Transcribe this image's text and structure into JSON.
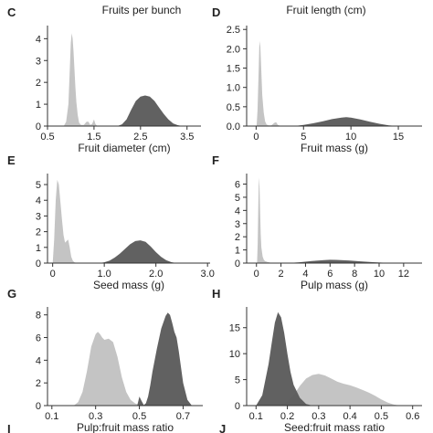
{
  "header": {
    "left_title": "Fruits per bunch",
    "right_title": "Fruit length (cm)"
  },
  "colors": {
    "light": "#c4c4c4",
    "dark": "#5b5b5b",
    "axis": "#333333"
  },
  "footer": {
    "left_letter": "I",
    "right_letter": "J"
  },
  "chart_data": [
    {
      "panel": "C",
      "type": "area",
      "xlabel": "Fruit diameter (cm)",
      "xlim": [
        0.5,
        3.8
      ],
      "ylim": [
        0,
        4.6
      ],
      "xticks": [
        0.5,
        1.5,
        2.5,
        3.5
      ],
      "xtick_labels": [
        "0.5",
        "1.5",
        "2.5",
        "3.5"
      ],
      "yticks": [
        0,
        1,
        2,
        3,
        4
      ],
      "series": [
        {
          "shade": "light",
          "x": [
            0.85,
            0.9,
            0.95,
            0.98,
            1.0,
            1.02,
            1.04,
            1.06,
            1.08,
            1.1,
            1.12,
            1.15,
            1.18,
            1.22,
            1.28,
            1.34,
            1.38,
            1.42,
            1.46,
            1.5,
            1.53,
            1.56,
            1.6
          ],
          "y": [
            0,
            0.2,
            1.0,
            2.6,
            3.8,
            4.25,
            4.0,
            3.4,
            2.6,
            1.8,
            1.1,
            0.5,
            0.15,
            0.05,
            0.05,
            0.2,
            0.2,
            0.05,
            0.1,
            0.3,
            0.1,
            0.02,
            0
          ]
        },
        {
          "shade": "dark",
          "x": [
            2.0,
            2.1,
            2.2,
            2.3,
            2.4,
            2.5,
            2.6,
            2.7,
            2.8,
            2.9,
            3.0,
            3.1,
            3.2,
            3.3,
            3.4
          ],
          "y": [
            0,
            0.08,
            0.3,
            0.75,
            1.15,
            1.35,
            1.4,
            1.35,
            1.15,
            0.85,
            0.55,
            0.3,
            0.12,
            0.04,
            0
          ]
        }
      ]
    },
    {
      "panel": "D",
      "type": "area",
      "xlabel": "Fruit mass (g)",
      "xlim": [
        -1,
        17.5
      ],
      "ylim": [
        0,
        2.6
      ],
      "xticks": [
        0,
        5,
        10,
        15
      ],
      "xtick_labels": [
        "0",
        "5",
        "10",
        "15"
      ],
      "yticks": [
        0,
        0.5,
        1.0,
        1.5,
        2.0,
        2.5
      ],
      "ytick_labels": [
        "0.0",
        "0.5",
        "1.0",
        "1.5",
        "2.0",
        "2.5"
      ],
      "series": [
        {
          "shade": "light",
          "x": [
            0.05,
            0.15,
            0.25,
            0.35,
            0.45,
            0.55,
            0.65,
            0.8,
            0.95,
            1.1,
            1.3,
            1.6,
            1.9,
            2.1,
            2.3,
            2.6
          ],
          "y": [
            0,
            0.4,
            1.3,
            2.2,
            2.05,
            1.4,
            0.8,
            0.35,
            0.12,
            0.04,
            0.02,
            0.02,
            0.08,
            0.1,
            0.03,
            0
          ]
        },
        {
          "shade": "dark",
          "x": [
            4,
            5,
            6,
            7,
            8,
            9,
            9.5,
            10,
            11,
            12,
            13,
            14,
            15
          ],
          "y": [
            0,
            0.03,
            0.07,
            0.12,
            0.18,
            0.22,
            0.23,
            0.22,
            0.17,
            0.11,
            0.06,
            0.02,
            0
          ]
        }
      ]
    },
    {
      "panel": "E",
      "type": "area",
      "xlabel": "Seed mass (g)",
      "xlim": [
        -0.1,
        3.05
      ],
      "ylim": [
        0,
        5.7
      ],
      "xticks": [
        0,
        1.0,
        2.0,
        3.0
      ],
      "xtick_labels": [
        "0",
        "1.0",
        "2.0",
        "3.0"
      ],
      "yticks": [
        0,
        1,
        2,
        3,
        4,
        5
      ],
      "series": [
        {
          "shade": "light",
          "x": [
            0,
            0.03,
            0.06,
            0.09,
            0.12,
            0.15,
            0.18,
            0.21,
            0.24,
            0.27,
            0.3,
            0.33,
            0.36,
            0.39,
            0.42,
            0.46,
            0.5
          ],
          "y": [
            0,
            1.5,
            4.0,
            5.3,
            5.0,
            3.9,
            2.8,
            1.8,
            1.3,
            1.4,
            1.5,
            1.0,
            0.4,
            0.15,
            0.05,
            0.02,
            0
          ]
        },
        {
          "shade": "dark",
          "x": [
            0.9,
            1.0,
            1.1,
            1.2,
            1.3,
            1.4,
            1.5,
            1.6,
            1.7,
            1.8,
            1.9,
            2.0,
            2.1,
            2.2,
            2.3,
            2.4
          ],
          "y": [
            0,
            0.05,
            0.15,
            0.35,
            0.6,
            0.9,
            1.2,
            1.4,
            1.45,
            1.35,
            1.05,
            0.7,
            0.4,
            0.18,
            0.06,
            0
          ]
        }
      ]
    },
    {
      "panel": "F",
      "type": "area",
      "xlabel": "Pulp mass (g)",
      "xlim": [
        -0.8,
        13.5
      ],
      "ylim": [
        0,
        6.8
      ],
      "xticks": [
        0,
        2,
        4,
        6,
        8,
        10,
        12
      ],
      "xtick_labels": [
        "0",
        "2",
        "4",
        "6",
        "8",
        "10",
        "12"
      ],
      "yticks": [
        0,
        1,
        2,
        3,
        4,
        5,
        6
      ],
      "series": [
        {
          "shade": "light",
          "x": [
            0.05,
            0.1,
            0.15,
            0.2,
            0.25,
            0.3,
            0.35,
            0.4,
            0.5,
            0.6,
            0.7,
            0.9,
            1.2,
            1.5
          ],
          "y": [
            0,
            1.5,
            4.5,
            6.5,
            5.8,
            3.8,
            2.2,
            1.2,
            0.5,
            0.25,
            0.15,
            0.08,
            0.02,
            0
          ]
        },
        {
          "shade": "dark",
          "x": [
            2.5,
            3.5,
            4.5,
            5.5,
            6.0,
            6.5,
            7.5,
            8.5,
            9.5,
            10.5,
            11.5
          ],
          "y": [
            0,
            0.06,
            0.15,
            0.22,
            0.25,
            0.24,
            0.2,
            0.13,
            0.07,
            0.03,
            0
          ]
        }
      ]
    },
    {
      "panel": "G",
      "type": "area",
      "xlabel": "Pulp:fruit mass ratio",
      "xlim": [
        0.08,
        0.79
      ],
      "ylim": [
        0,
        8.7
      ],
      "xticks": [
        0.1,
        0.3,
        0.5,
        0.7
      ],
      "xtick_labels": [
        "0.1",
        "0.3",
        "0.5",
        "0.7"
      ],
      "yticks": [
        0,
        2,
        4,
        6,
        8
      ],
      "series": [
        {
          "shade": "light",
          "x": [
            0.2,
            0.22,
            0.24,
            0.26,
            0.28,
            0.3,
            0.31,
            0.32,
            0.33,
            0.34,
            0.36,
            0.38,
            0.4,
            0.42,
            0.44,
            0.46,
            0.48,
            0.5,
            0.52
          ],
          "y": [
            0,
            0.3,
            1.2,
            3.0,
            5.2,
            6.3,
            6.5,
            6.3,
            6.0,
            5.8,
            5.9,
            5.6,
            4.3,
            2.5,
            1.2,
            0.5,
            0.2,
            0.05,
            0
          ]
        },
        {
          "shade": "dark",
          "x": [
            0.49,
            0.5,
            0.51,
            0.52,
            0.53,
            0.54,
            0.55,
            0.56,
            0.58,
            0.6,
            0.62,
            0.63,
            0.64,
            0.65,
            0.66,
            0.67,
            0.68,
            0.7,
            0.72,
            0.74
          ],
          "y": [
            0,
            0.8,
            0.4,
            0.05,
            0.2,
            0.8,
            1.8,
            3.0,
            5.0,
            6.8,
            7.9,
            8.2,
            8.0,
            7.3,
            6.5,
            6.0,
            4.8,
            2.0,
            0.5,
            0
          ]
        }
      ]
    },
    {
      "panel": "H",
      "type": "area",
      "xlabel": "Seed:fruit mass ratio",
      "xlim": [
        0.07,
        0.63
      ],
      "ylim": [
        0,
        19
      ],
      "xticks": [
        0.1,
        0.2,
        0.3,
        0.4,
        0.5,
        0.6
      ],
      "xtick_labels": [
        "0.1",
        "0.2",
        "0.3",
        "0.4",
        "0.5",
        "0.6"
      ],
      "yticks": [
        0,
        5,
        10,
        15
      ],
      "series": [
        {
          "shade": "light",
          "x": [
            0.15,
            0.18,
            0.2,
            0.22,
            0.24,
            0.26,
            0.28,
            0.3,
            0.32,
            0.34,
            0.36,
            0.38,
            0.4,
            0.42,
            0.44,
            0.46,
            0.48,
            0.5,
            0.52,
            0.54,
            0.56
          ],
          "y": [
            0,
            0.2,
            0.8,
            2.0,
            3.8,
            5.2,
            5.9,
            6.1,
            5.8,
            5.2,
            4.6,
            4.2,
            3.9,
            3.5,
            3.0,
            2.5,
            1.9,
            1.2,
            0.6,
            0.2,
            0
          ]
        },
        {
          "shade": "dark",
          "x": [
            0.1,
            0.12,
            0.14,
            0.15,
            0.16,
            0.17,
            0.18,
            0.19,
            0.2,
            0.21,
            0.22,
            0.24,
            0.26,
            0.28
          ],
          "y": [
            0,
            2.0,
            8.0,
            12.0,
            16.0,
            18.0,
            17.0,
            14.0,
            10.0,
            6.5,
            4.0,
            1.5,
            0.3,
            0
          ]
        }
      ]
    }
  ]
}
